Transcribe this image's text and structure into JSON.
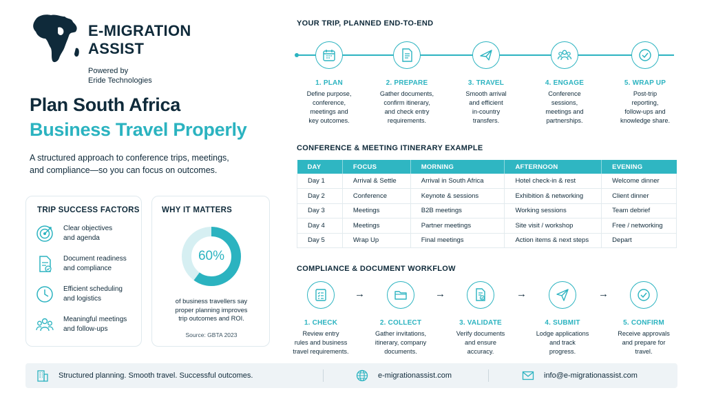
{
  "brand": {
    "name_line1": "E-MIGRATION",
    "name_line2": "ASSIST",
    "powered_line1": "Powered by",
    "powered_line2": "Eride Technologies",
    "logo_icon": "africa-map-icon"
  },
  "hero": {
    "title_line1": "Plan South Africa",
    "title_line2": "Business Travel Properly",
    "intro_line1": "A structured approach to conference trips, meetings,",
    "intro_line2": "and compliance—so you can focus on outcomes."
  },
  "success_factors": {
    "title": "TRIP SUCCESS FACTORS",
    "items": [
      {
        "line1": "Clear objectives",
        "line2": "and agenda",
        "icon": "target-icon"
      },
      {
        "line1": "Document readiness",
        "line2": "and compliance",
        "icon": "document-check-icon"
      },
      {
        "line1": "Efficient scheduling",
        "line2": "and logistics",
        "icon": "clock-icon"
      },
      {
        "line1": "Meaningful meetings",
        "line2": "and follow-ups",
        "icon": "people-icon"
      }
    ]
  },
  "why": {
    "title": "WHY IT MATTERS",
    "percent_label": "60%",
    "percent_value": 0.6,
    "desc_line1": "of business travellers say",
    "desc_line2": "proper planning improves",
    "desc_line3": "trip outcomes and ROI.",
    "source": "Source: GBTA 2023"
  },
  "trip": {
    "title": "YOUR TRIP, PLANNED END-TO-END",
    "steps": [
      {
        "label": "1. PLAN",
        "icon": "calendar-icon",
        "l1": "Define purpose,",
        "l2": "conference,",
        "l3": "meetings and",
        "l4": "key outcomes."
      },
      {
        "label": "2. PREPARE",
        "icon": "document-icon",
        "l1": "Gather documents,",
        "l2": "confirm itinerary,",
        "l3": "and check entry",
        "l4": "requirements."
      },
      {
        "label": "3. TRAVEL",
        "icon": "airplane-icon",
        "l1": "Smooth arrival",
        "l2": "and efficient",
        "l3": "in-country",
        "l4": "transfers."
      },
      {
        "label": "4. ENGAGE",
        "icon": "group-icon",
        "l1": "Conference",
        "l2": "sessions,",
        "l3": "meetings and",
        "l4": "partnerships."
      },
      {
        "label": "5. WRAP UP",
        "icon": "check-circle-icon",
        "l1": "Post-trip",
        "l2": "reporting,",
        "l3": "follow-ups and",
        "l4": "knowledge share."
      }
    ]
  },
  "itinerary": {
    "title": "CONFERENCE & MEETING ITINERARY EXAMPLE",
    "headers": [
      "DAY",
      "FOCUS",
      "MORNING",
      "AFTERNOON",
      "EVENING"
    ],
    "rows": [
      [
        "Day 1",
        "Arrival & Settle",
        "Arrival in South Africa",
        "Hotel check-in & rest",
        "Welcome dinner"
      ],
      [
        "Day 2",
        "Conference",
        "Keynote & sessions",
        "Exhibition & networking",
        "Client dinner"
      ],
      [
        "Day 3",
        "Meetings",
        "B2B meetings",
        "Working sessions",
        "Team debrief"
      ],
      [
        "Day 4",
        "Meetings",
        "Partner meetings",
        "Site visit / workshop",
        "Free / networking"
      ],
      [
        "Day 5",
        "Wrap Up",
        "Final meetings",
        "Action items & next steps",
        "Depart"
      ]
    ]
  },
  "compliance": {
    "title": "COMPLIANCE & DOCUMENT WORKFLOW",
    "arrow": "→",
    "steps": [
      {
        "label": "1. CHECK",
        "icon": "checklist-icon",
        "l1": "Review entry",
        "l2": "rules and business",
        "l3": "travel requirements."
      },
      {
        "label": "2. COLLECT",
        "icon": "folder-icon",
        "l1": "Gather invitations,",
        "l2": "itinerary, company",
        "l3": "documents."
      },
      {
        "label": "3. VALIDATE",
        "icon": "document-verify-icon",
        "l1": "Verify documents",
        "l2": "and ensure",
        "l3": "accuracy."
      },
      {
        "label": "4. SUBMIT",
        "icon": "send-icon",
        "l1": "Lodge applications",
        "l2": "and track",
        "l3": "progress."
      },
      {
        "label": "5. CONFIRM",
        "icon": "check-circle-icon",
        "l1": "Receive approvals",
        "l2": "and prepare for",
        "l3": "travel."
      }
    ]
  },
  "footer": {
    "tagline": "Structured planning. Smooth travel. Successful outcomes.",
    "website": "e-migrationassist.com",
    "email": "info@e-migrationassist.com",
    "colors": {
      "accent": "#2bb3c0",
      "navy": "#0f2a3a",
      "footer_bg": "#eef3f6"
    }
  }
}
